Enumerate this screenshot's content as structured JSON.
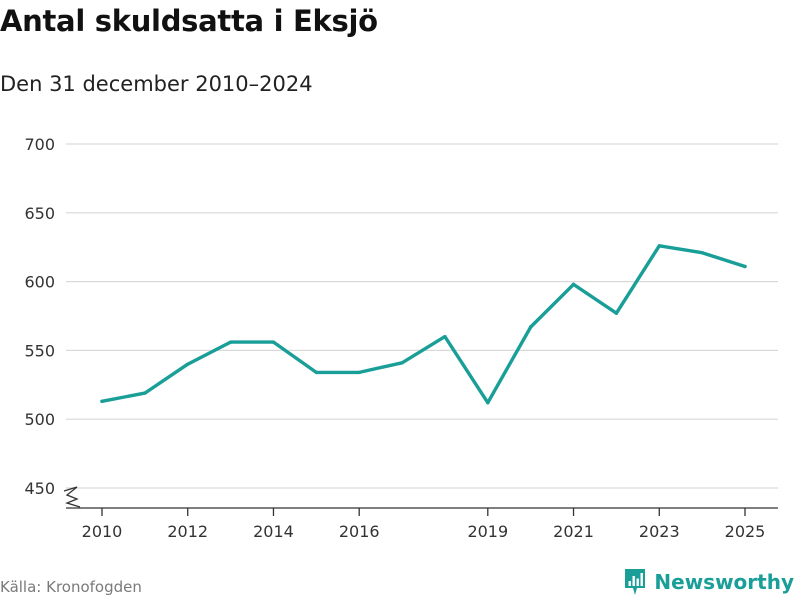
{
  "header": {
    "title": "Antal skuldsatta i Eksjö",
    "subtitle": "Den 31 december 2010–2024"
  },
  "footer": {
    "source": "Källa: Kronofogden",
    "brand": "Newsworthy",
    "brand_icon": "bar-chart-icon",
    "brand_color": "#199e98"
  },
  "chart_data": {
    "type": "line",
    "title": "Antal skuldsatta i Eksjö",
    "subtitle": "Den 31 december 2010–2024",
    "xlabel": "",
    "ylabel": "",
    "x": [
      2010,
      2011,
      2012,
      2013,
      2014,
      2015,
      2016,
      2017,
      2018,
      2019,
      2020,
      2021,
      2022,
      2023,
      2024,
      2025
    ],
    "series": [
      {
        "name": "Antal skuldsatta",
        "values": [
          513,
          519,
          540,
          556,
          556,
          534,
          534,
          541,
          560,
          512,
          567,
          598,
          577,
          626,
          621,
          611
        ],
        "color": "#199e98"
      }
    ],
    "xticks": [
      2010,
      2012,
      2014,
      2016,
      2019,
      2021,
      2023,
      2025
    ],
    "yticks": [
      450,
      500,
      550,
      600,
      650,
      700
    ],
    "ylim": [
      450,
      700
    ],
    "xlim": [
      2010,
      2025
    ],
    "axis_break": true,
    "grid": true
  }
}
